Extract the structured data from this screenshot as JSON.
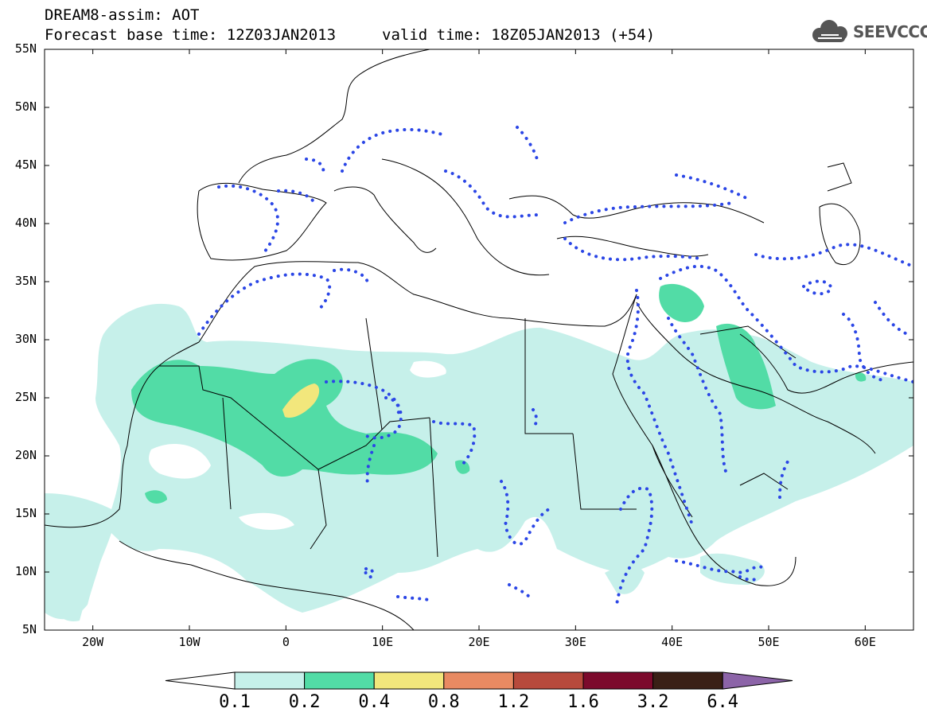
{
  "header": {
    "title_line1": "DREAM8-assim: AOT",
    "title_line2": "Forecast base time: 12Z03JAN2013",
    "valid_time": "valid time: 18Z05JAN2013 (+54)",
    "logo_text": "SEEVCCC",
    "logo_icon": "cloud-icon"
  },
  "map": {
    "lon_range": [
      -25,
      65
    ],
    "lat_range": [
      5,
      55
    ],
    "lat_labels": [
      "5N",
      "10N",
      "15N",
      "20N",
      "25N",
      "30N",
      "35N",
      "40N",
      "45N",
      "50N",
      "55N"
    ],
    "lon_labels": [
      "20W",
      "10W",
      "0",
      "10E",
      "20E",
      "30E",
      "40E",
      "50E",
      "60E"
    ],
    "contour_dotted_color": "#2b46e6",
    "border_color": "#000000"
  },
  "colorbar": {
    "levels": [
      "0.1",
      "0.2",
      "0.4",
      "0.8",
      "1.2",
      "1.6",
      "3.2",
      "6.4"
    ],
    "colors": [
      "#ffffff",
      "#c6f0ea",
      "#52dca6",
      "#f2e77c",
      "#e88a62",
      "#b74a3c",
      "#7c0a2c",
      "#3a2016",
      "#8c64a8"
    ]
  }
}
